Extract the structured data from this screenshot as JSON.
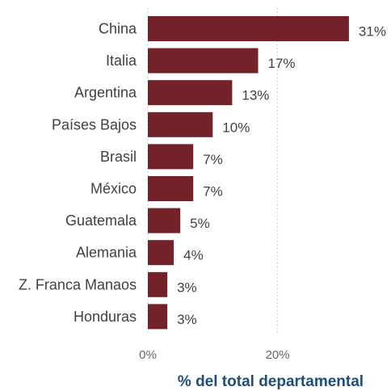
{
  "chart_data": {
    "type": "bar",
    "orientation": "horizontal",
    "categories": [
      "China",
      "Italia",
      "Argentina",
      "Países Bajos",
      "Brasil",
      "México",
      "Guatemala",
      "Alemania",
      "Z. Franca Manaos",
      "Honduras"
    ],
    "values": [
      31,
      17,
      13,
      10,
      7,
      7,
      5,
      4,
      3,
      3
    ],
    "value_labels": [
      "31%",
      "17%",
      "13%",
      "10%",
      "7%",
      "7%",
      "5%",
      "4%",
      "3%",
      "3%"
    ],
    "xlabel": "% del total departamental",
    "xlim": [
      0,
      31
    ],
    "xticks": [
      0,
      20
    ],
    "xtick_labels": [
      "0%",
      "20%"
    ],
    "grid": "vertical-dotted",
    "bar_color": "#722228"
  }
}
